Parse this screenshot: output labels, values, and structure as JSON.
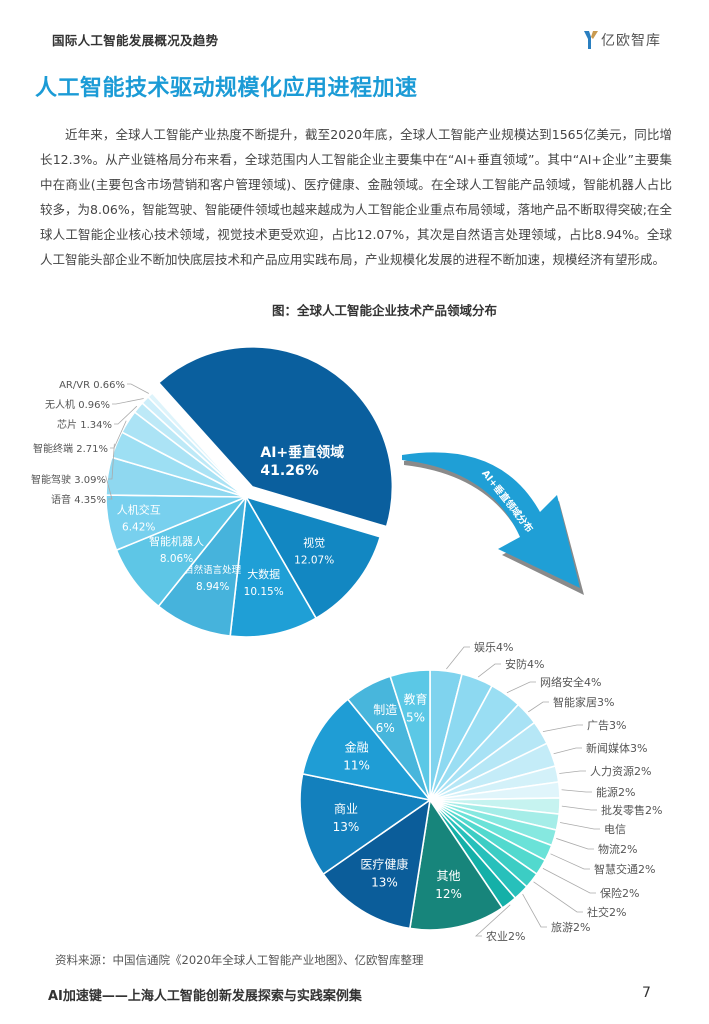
{
  "header": {
    "section": "国际人工智能发展概况及趋势",
    "logo_text": "亿欧智库",
    "logo_icon": "y-logo-icon"
  },
  "title": "人工智能技术驱动规模化应用进程加速",
  "paragraph": "近年来，全球人工智能产业热度不断提升，截至2020年底，全球人工智能产业规模达到1565亿美元，同比增长12.3%。从产业链格局分布来看，全球范围内人工智能企业主要集中在“AI+垂直领域”。其中“AI+企业”主要集中在商业(主要包含市场营销和客户管理领域)、医疗健康、金融领域。在全球人工智能产品领域，智能机器人占比较多，为8.06%，智能驾驶、智能硬件领域也越来越成为人工智能企业重点布局领域，落地产品不断取得突破;在全球人工智能企业核心技术领域，视觉技术更受欢迎，占比12.07%，其次是自然语言处理领域，占比8.94%。全球人工智能头部企业不断加快底层技术和产品应用实践布局，产业规模化发展的进程不断加速，规模经济有望形成。",
  "figure_title": "图：全球人工智能企业技术产品领域分布",
  "arrow_label": "AI+垂直领域分布",
  "source": "资料来源：中国信通院《2020年全球人工智能产业地图》、亿欧智库整理",
  "footer": {
    "title": "AI加速键——上海人工智能创新发展探索与实践案例集",
    "page": "7"
  },
  "chart_data": [
    {
      "type": "pie",
      "title": "全球人工智能企业技术产品领域分布",
      "categories": [
        "AI+垂直领域",
        "视觉",
        "大数据",
        "自然语言处理",
        "智能机器人",
        "人机交互",
        "语音",
        "智能驾驶",
        "智能终端",
        "芯片",
        "无人机",
        "AR/VR"
      ],
      "values": [
        41.26,
        12.07,
        10.15,
        8.94,
        8.06,
        6.42,
        4.35,
        3.09,
        2.71,
        1.34,
        0.96,
        0.66
      ],
      "labels": [
        "AI+垂直领域",
        "视觉",
        "大数据",
        "自然语言处理",
        "智能机器人",
        "人机交互",
        "语音 4.35%",
        "智能驾驶 3.09%",
        "智能终端 2.71%",
        "芯片 1.34%",
        "无人机 0.96%",
        "AR/VR 0.66%"
      ],
      "value_labels": [
        "41.26%",
        "12.07%",
        "10.15%",
        "8.94%",
        "8.06%",
        "6.42%",
        "",
        "",
        "",
        "",
        "",
        ""
      ],
      "colors": [
        "#0a5f9e",
        "#1287c2",
        "#1f9fd6",
        "#46b3dc",
        "#5ec6e6",
        "#78d0ee",
        "#8fd8f0",
        "#9ddff3",
        "#abe3f5",
        "#bde9f7",
        "#cdeefa",
        "#def4fb"
      ],
      "exploded": "AI+垂直领域",
      "unit": "%"
    },
    {
      "type": "pie",
      "title": "AI+垂直领域分布",
      "categories": [
        "娱乐",
        "安防",
        "网络安全",
        "智能家居",
        "广告",
        "新闻媒体",
        "人力资源",
        "能源",
        "批发零售",
        "电信",
        "物流",
        "智慧交通",
        "保险",
        "社交",
        "旅游",
        "农业",
        "其他",
        "医疗健康",
        "商业",
        "金融",
        "制造",
        "教育"
      ],
      "values": [
        4,
        4,
        4,
        3,
        3,
        3,
        2,
        2,
        2,
        2,
        2,
        2,
        2,
        2,
        2,
        2,
        12,
        13,
        13,
        11,
        6,
        5
      ],
      "labels": [
        "娱乐4%",
        "安防4%",
        "网络安全4%",
        "智能家居3%",
        "广告3%",
        "新闻媒体3%",
        "人力资源2%",
        "能源2%",
        "批发零售2%",
        "电信",
        "物流2%",
        "智慧交通2%",
        "保险2%",
        "社交2%",
        "旅游2%",
        "农业2%",
        "其他",
        "医疗健康",
        "商业",
        "金融",
        "制造",
        "教育"
      ],
      "value_labels": [
        "",
        "",
        "",
        "",
        "",
        "",
        "",
        "",
        "",
        "",
        "",
        "",
        "",
        "",
        "",
        "",
        "12%",
        "13%",
        "13%",
        "11%",
        "6%",
        "5%"
      ],
      "colors": [
        "#7fd3ee",
        "#8dd9f1",
        "#9adef3",
        "#a8e2f5",
        "#b6e7f6",
        "#c4ecf8",
        "#d3f1f9",
        "#e0f5fb",
        "#c6f3f0",
        "#a5ede8",
        "#86e8e0",
        "#6ae2d8",
        "#52d9ce",
        "#3ccdc4",
        "#27c0bb",
        "#14b0a8",
        "#17857b",
        "#0b5d9a",
        "#1380bd",
        "#1f9dd5",
        "#48b6dc",
        "#5bc8e6"
      ],
      "unit": "%"
    }
  ]
}
